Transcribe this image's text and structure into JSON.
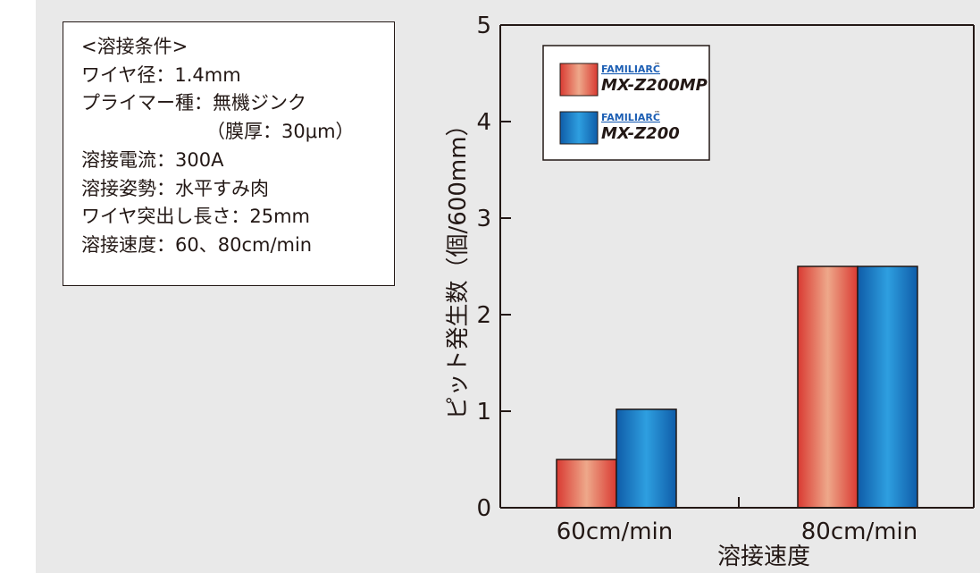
{
  "conditions": {
    "lines": [
      "<溶接条件>",
      "ワイヤ径：1.4mm",
      "プライマー種：無機ジンク",
      "（膜厚：30μm）",
      "溶接電流：300A",
      "溶接姿勢：水平すみ肉",
      "ワイヤ突出し長さ：25mm",
      "溶接速度：60、80cm/min"
    ]
  },
  "legend": {
    "entries": [
      {
        "brand": "FAMILIARC",
        "tm": "™",
        "model": "MX-Z200MP"
      },
      {
        "brand": "FAMILIARC",
        "tm": "™",
        "model": "MX-Z200"
      }
    ]
  },
  "colors": {
    "series_red_dark": "#d93a32",
    "series_red_light": "#eea88a",
    "series_blue_dark": "#0f5ca8",
    "series_blue_light": "#2e9fe0",
    "background": "#e9e9e9"
  },
  "chart_data": {
    "type": "bar",
    "categories": [
      "60cm/min",
      "80cm/min"
    ],
    "series": [
      {
        "name": "MX-Z200MP",
        "values": [
          0.5,
          2.5
        ]
      },
      {
        "name": "MX-Z200",
        "values": [
          1.02,
          2.5
        ]
      }
    ],
    "xlabel": "溶接速度",
    "ylabel": "ピット発生数（個/600mm）",
    "ylim": [
      0,
      5
    ],
    "yticks": [
      0,
      1,
      2,
      3,
      4,
      5
    ],
    "grid": false,
    "legend_position": "top-left"
  }
}
